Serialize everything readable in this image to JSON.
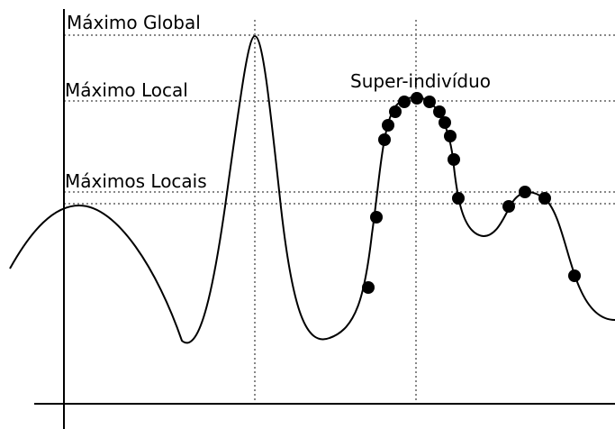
{
  "labels": {
    "global_max": "Máximo Global",
    "local_max": "Máximo Local",
    "super_individual": "Super-indivíduo",
    "local_maxima": "Máximos Locais"
  },
  "colors": {
    "curve": "#000000",
    "axis": "#000000",
    "guide": "#888888",
    "dot": "#000000",
    "background": "#ffffff"
  }
}
